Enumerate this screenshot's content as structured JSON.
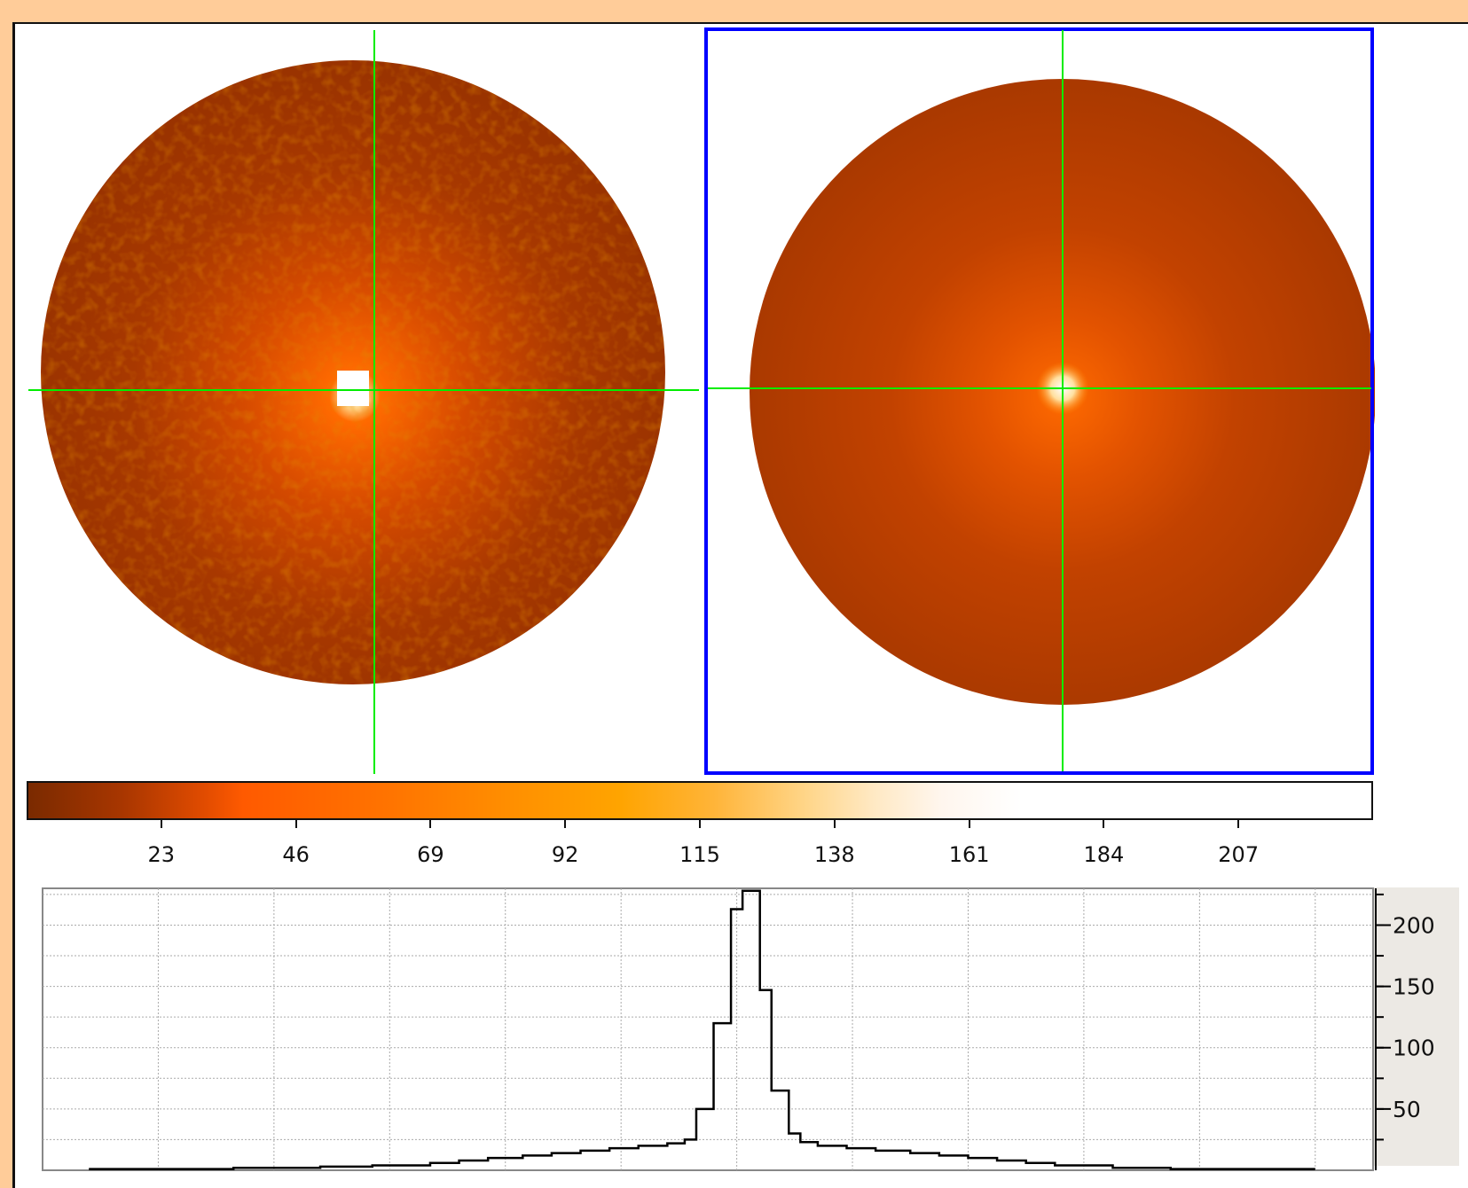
{
  "colorbar": {
    "tick_labels": [
      "23",
      "46",
      "69",
      "92",
      "115",
      "138",
      "161",
      "184",
      "207"
    ],
    "tick_values": [
      23,
      46,
      69,
      92,
      115,
      138,
      161,
      184,
      207
    ],
    "range": [
      0,
      230
    ]
  },
  "overlay": {
    "crosshair_color": "#00ee00",
    "selection_frame_color": "#0000ff"
  },
  "chart_data": {
    "type": "histogram",
    "title": "",
    "xlabel": "",
    "ylabel": "",
    "xlim": [
      0,
      230
    ],
    "ylim": [
      0,
      230
    ],
    "y_ticks": [
      50,
      100,
      150,
      200
    ],
    "y_tick_labels": [
      "50",
      "100",
      "150",
      "200"
    ],
    "grid": true,
    "bins": [
      {
        "x0": 8,
        "x1": 33,
        "y": 1
      },
      {
        "x0": 33,
        "x1": 48,
        "y": 2
      },
      {
        "x0": 48,
        "x1": 57,
        "y": 3
      },
      {
        "x0": 57,
        "x1": 67,
        "y": 4
      },
      {
        "x0": 67,
        "x1": 72,
        "y": 6
      },
      {
        "x0": 72,
        "x1": 77,
        "y": 8
      },
      {
        "x0": 77,
        "x1": 83,
        "y": 10
      },
      {
        "x0": 83,
        "x1": 88,
        "y": 12
      },
      {
        "x0": 88,
        "x1": 93,
        "y": 14
      },
      {
        "x0": 93,
        "x1": 98,
        "y": 16
      },
      {
        "x0": 98,
        "x1": 103,
        "y": 18
      },
      {
        "x0": 103,
        "x1": 108,
        "y": 20
      },
      {
        "x0": 108,
        "x1": 111,
        "y": 22
      },
      {
        "x0": 111,
        "x1": 113,
        "y": 25
      },
      {
        "x0": 113,
        "x1": 116,
        "y": 50
      },
      {
        "x0": 116,
        "x1": 119,
        "y": 120
      },
      {
        "x0": 119,
        "x1": 121,
        "y": 213
      },
      {
        "x0": 121,
        "x1": 124,
        "y": 228
      },
      {
        "x0": 124,
        "x1": 126,
        "y": 147
      },
      {
        "x0": 126,
        "x1": 129,
        "y": 65
      },
      {
        "x0": 129,
        "x1": 131,
        "y": 30
      },
      {
        "x0": 131,
        "x1": 134,
        "y": 23
      },
      {
        "x0": 134,
        "x1": 139,
        "y": 20
      },
      {
        "x0": 139,
        "x1": 144,
        "y": 18
      },
      {
        "x0": 144,
        "x1": 150,
        "y": 16
      },
      {
        "x0": 150,
        "x1": 155,
        "y": 14
      },
      {
        "x0": 155,
        "x1": 160,
        "y": 12
      },
      {
        "x0": 160,
        "x1": 165,
        "y": 10
      },
      {
        "x0": 165,
        "x1": 170,
        "y": 8
      },
      {
        "x0": 170,
        "x1": 175,
        "y": 6
      },
      {
        "x0": 175,
        "x1": 185,
        "y": 4
      },
      {
        "x0": 185,
        "x1": 195,
        "y": 2
      },
      {
        "x0": 195,
        "x1": 220,
        "y": 1
      }
    ]
  }
}
